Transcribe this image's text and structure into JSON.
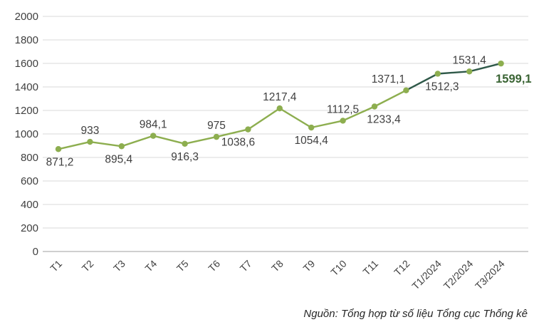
{
  "chart_data": {
    "type": "line",
    "categories": [
      "T1",
      "T2",
      "T3",
      "T4",
      "T5",
      "T6",
      "T7",
      "T8",
      "T9",
      "T10",
      "T11",
      "T12",
      "T1/2024",
      "T2/2024",
      "T3/2024"
    ],
    "values": [
      871.2,
      933,
      895.4,
      984.1,
      916.3,
      975,
      1038.6,
      1217.4,
      1054.4,
      1112.5,
      1233.4,
      1371.1,
      1512.3,
      1531.4,
      1599.1
    ],
    "point_labels": [
      "871,2",
      "933",
      "895,4",
      "984,1",
      "916,3",
      "975",
      "1038,6",
      "1217,4",
      "1054,4",
      "1112,5",
      "1233,4",
      "1371,1",
      "1512,3",
      "1531,4",
      "1599,1"
    ],
    "label_positions": [
      "below",
      "above",
      "below",
      "above",
      "below",
      "above",
      "below",
      "above",
      "below",
      "above",
      "below",
      "above",
      "below",
      "above",
      "below-right"
    ],
    "label_dx": [
      2,
      0,
      -4,
      0,
      0,
      0,
      -14,
      0,
      0,
      0,
      13,
      -25,
      6,
      0,
      0
    ],
    "title": "",
    "xlabel": "",
    "ylabel": "",
    "ylim": [
      0,
      2000
    ],
    "ytick_step": 200,
    "ytick_labels": [
      "0",
      "200",
      "400",
      "600",
      "800",
      "1000",
      "1200",
      "1400",
      "1600",
      "1800",
      "2000"
    ],
    "grid": true,
    "legend": "none",
    "recent_segment_start_index": 11,
    "colors": {
      "line_main": "#8DAE4F",
      "line_recent": "#2F5949",
      "marker": "#8DAE4F",
      "data_label": "#3F3F3F",
      "last_data_label": "#3A6434",
      "gridline": "#D9D9D9",
      "axis_line": "#BFBFBF",
      "tick_label": "#404040"
    },
    "source_note": "Nguồn: Tổng hợp từ số liệu Tổng cục Thống kê"
  }
}
